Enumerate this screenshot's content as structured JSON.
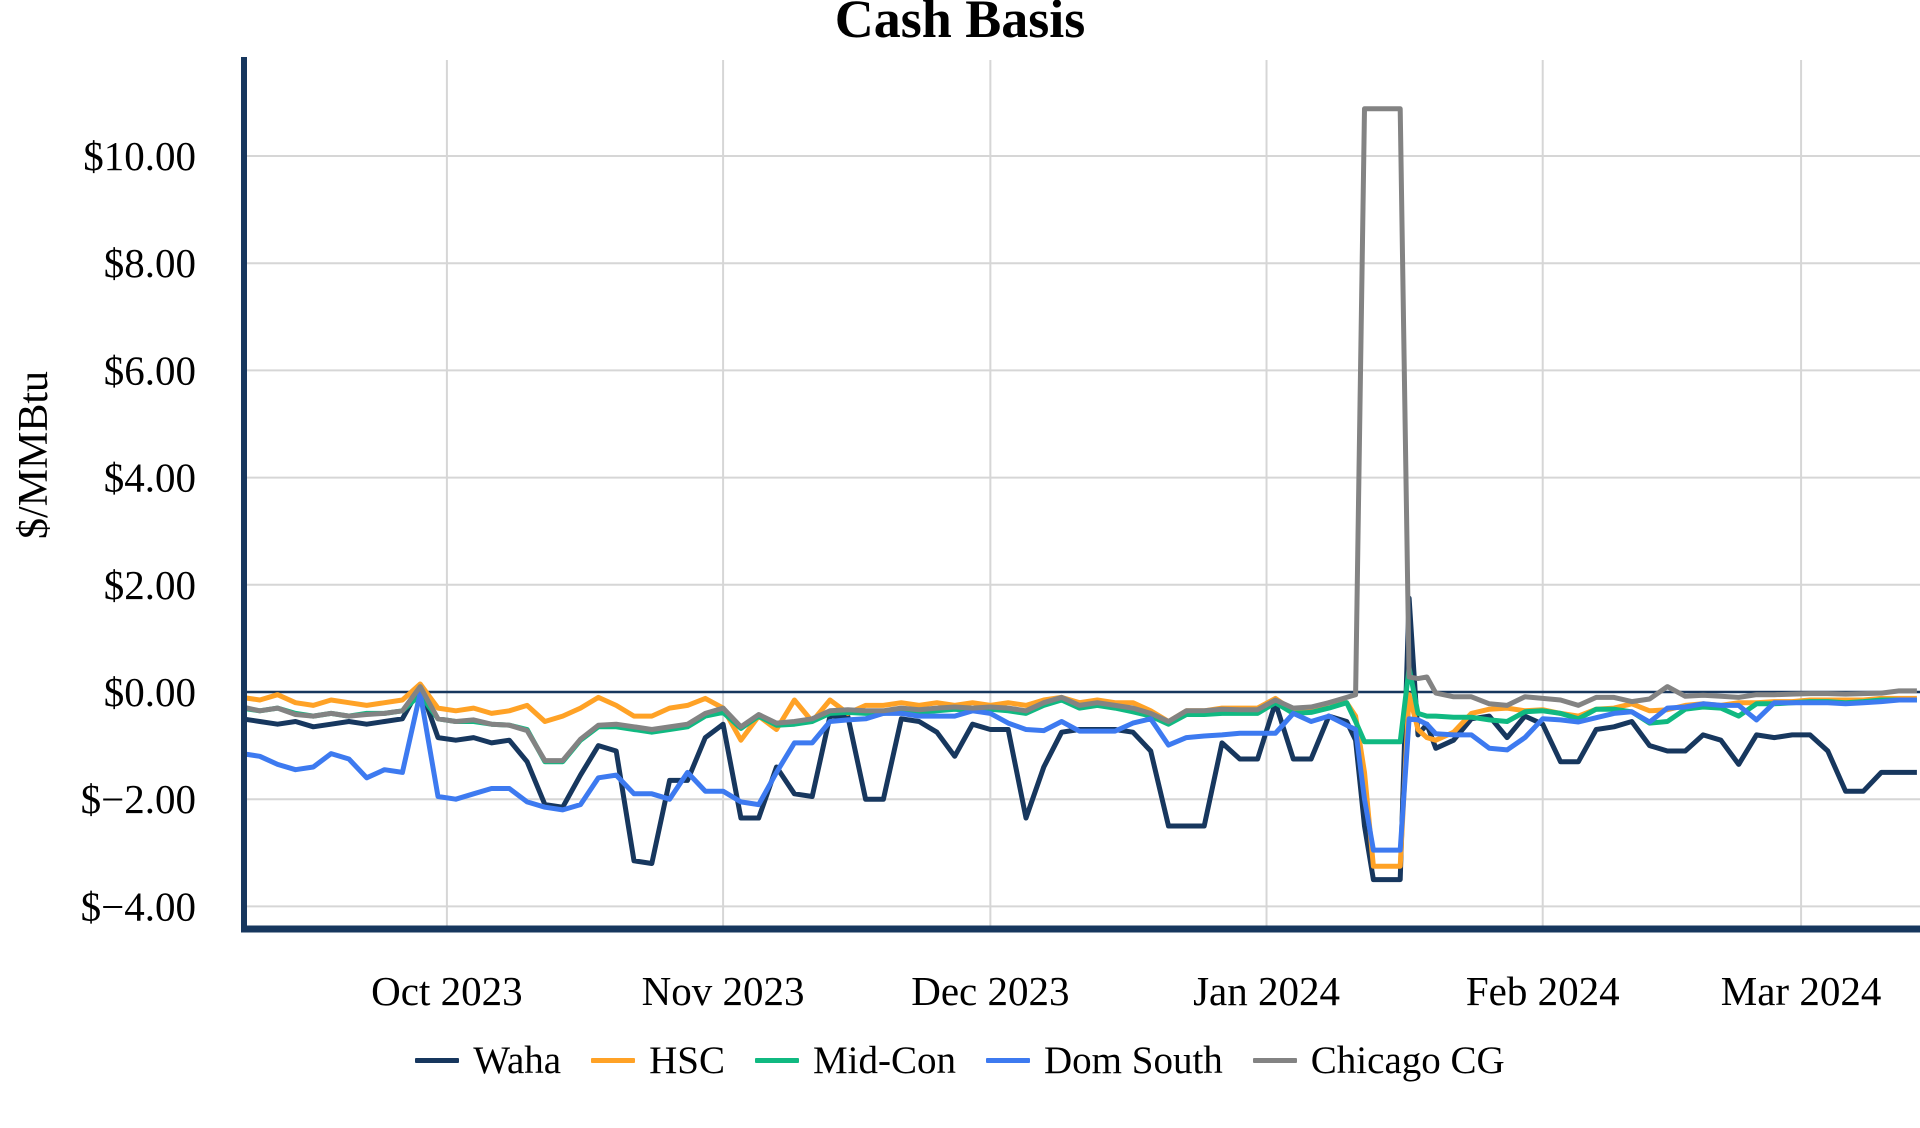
{
  "title": "Cash Basis",
  "y_axis": {
    "label": "$/MMBtu",
    "tick_values": [
      10,
      8,
      6,
      4,
      2,
      0,
      -2,
      -4
    ],
    "tick_labels": [
      "$10.00",
      "$8.00",
      "$6.00",
      "$4.00",
      "$2.00",
      "$0.00",
      "$−2.00",
      "$−4.00"
    ]
  },
  "x_axis": {
    "tick_labels": [
      "Oct 2023",
      "Nov 2023",
      "Dec 2023",
      "Jan 2024",
      "Feb 2024",
      "Mar 2024"
    ],
    "tick_days": [
      23,
      54,
      84,
      115,
      146,
      175
    ]
  },
  "colors": {
    "axis": "#17375e",
    "zero_line": "#17375e",
    "grid": "#d6d6d6",
    "background": "#ffffff"
  },
  "legend": {
    "position": "bottom",
    "entries": [
      "Waha",
      "HSC",
      "Mid-Con",
      "Dom South",
      "Chicago CG"
    ]
  },
  "chart_data": {
    "type": "line",
    "title": "Cash Basis",
    "xlabel": "",
    "ylabel": "$/MMBtu",
    "ylim": [
      -4.45,
      11.8
    ],
    "grid": true,
    "legend_position": "bottom",
    "x_unit": "days since start_date (daily cash basis series, Sep 2023 - Mar 2024)",
    "start_date": "2023-09-08",
    "end_date": "2024-03-14",
    "days": [
      0,
      2,
      4,
      6,
      8,
      10,
      12,
      14,
      16,
      18,
      20,
      22,
      24,
      26,
      28,
      30,
      32,
      34,
      36,
      38,
      40,
      42,
      44,
      46,
      48,
      50,
      52,
      54,
      56,
      58,
      60,
      62,
      64,
      66,
      68,
      70,
      72,
      74,
      76,
      78,
      80,
      82,
      84,
      86,
      88,
      90,
      92,
      94,
      96,
      98,
      100,
      102,
      104,
      106,
      108,
      110,
      112,
      114,
      116,
      118,
      120,
      122,
      124,
      125,
      126,
      127,
      128,
      129,
      130,
      131,
      132,
      133,
      134,
      136,
      138,
      140,
      142,
      144,
      146,
      148,
      150,
      152,
      154,
      156,
      158,
      160,
      162,
      164,
      166,
      168,
      170,
      172,
      174,
      176,
      178,
      180,
      182,
      184,
      186,
      188
    ],
    "series": [
      {
        "name": "Waha",
        "color": "#17375e",
        "values": [
          -0.5,
          -0.55,
          -0.6,
          -0.55,
          -0.65,
          -0.6,
          -0.55,
          -0.6,
          -0.55,
          -0.5,
          0.1,
          -0.85,
          -0.9,
          -0.85,
          -0.95,
          -0.9,
          -1.3,
          -2.1,
          -2.15,
          -1.55,
          -1.0,
          -1.1,
          -3.15,
          -3.2,
          -1.65,
          -1.65,
          -0.85,
          -0.6,
          -2.35,
          -2.35,
          -1.4,
          -1.9,
          -1.95,
          -0.45,
          -0.45,
          -2.0,
          -2.0,
          -0.5,
          -0.55,
          -0.75,
          -1.2,
          -0.6,
          -0.7,
          -0.7,
          -2.35,
          -1.4,
          -0.75,
          -0.7,
          -0.7,
          -0.7,
          -0.75,
          -1.1,
          -2.5,
          -2.5,
          -2.5,
          -0.95,
          -1.25,
          -1.25,
          -0.2,
          -1.25,
          -1.25,
          -0.45,
          -0.55,
          -0.9,
          -2.5,
          -3.5,
          -3.5,
          -3.5,
          -3.5,
          1.75,
          -0.8,
          -0.6,
          -1.05,
          -0.9,
          -0.5,
          -0.45,
          -0.85,
          -0.45,
          -0.6,
          -1.3,
          -1.3,
          -0.7,
          -0.65,
          -0.55,
          -1.0,
          -1.1,
          -1.1,
          -0.8,
          -0.9,
          -1.35,
          -0.8,
          -0.85,
          -0.8,
          -0.8,
          -1.1,
          -1.85,
          -1.85,
          -1.5,
          -1.5,
          -1.5
        ]
      },
      {
        "name": "HSC",
        "color": "#ffa226",
        "values": [
          -0.1,
          -0.15,
          -0.05,
          -0.2,
          -0.25,
          -0.15,
          -0.2,
          -0.25,
          -0.2,
          -0.15,
          0.15,
          -0.3,
          -0.35,
          -0.3,
          -0.4,
          -0.35,
          -0.25,
          -0.55,
          -0.45,
          -0.3,
          -0.1,
          -0.25,
          -0.45,
          -0.45,
          -0.3,
          -0.25,
          -0.12,
          -0.3,
          -0.9,
          -0.45,
          -0.7,
          -0.15,
          -0.55,
          -0.15,
          -0.4,
          -0.25,
          -0.25,
          -0.2,
          -0.25,
          -0.2,
          -0.25,
          -0.2,
          -0.25,
          -0.2,
          -0.25,
          -0.15,
          -0.1,
          -0.2,
          -0.15,
          -0.2,
          -0.2,
          -0.35,
          -0.55,
          -0.35,
          -0.35,
          -0.3,
          -0.3,
          -0.3,
          -0.12,
          -0.35,
          -0.35,
          -0.2,
          -0.2,
          -0.45,
          -1.5,
          -3.25,
          -3.25,
          -3.25,
          -3.25,
          -0.05,
          -0.7,
          -0.85,
          -0.9,
          -0.75,
          -0.4,
          -0.32,
          -0.3,
          -0.35,
          -0.33,
          -0.4,
          -0.45,
          -0.32,
          -0.3,
          -0.22,
          -0.35,
          -0.33,
          -0.25,
          -0.22,
          -0.25,
          -0.2,
          -0.2,
          -0.18,
          -0.18,
          -0.15,
          -0.15,
          -0.15,
          -0.15,
          -0.12,
          -0.12,
          -0.12
        ]
      },
      {
        "name": "Mid-Con",
        "color": "#10b981",
        "values": [
          -0.3,
          -0.35,
          -0.3,
          -0.4,
          -0.45,
          -0.4,
          -0.45,
          -0.4,
          -0.4,
          -0.35,
          -0.05,
          -0.5,
          -0.55,
          -0.55,
          -0.6,
          -0.62,
          -0.7,
          -1.3,
          -1.3,
          -0.9,
          -0.65,
          -0.65,
          -0.7,
          -0.75,
          -0.7,
          -0.65,
          -0.45,
          -0.38,
          -0.68,
          -0.45,
          -0.62,
          -0.6,
          -0.55,
          -0.4,
          -0.38,
          -0.4,
          -0.4,
          -0.35,
          -0.38,
          -0.35,
          -0.32,
          -0.35,
          -0.32,
          -0.35,
          -0.4,
          -0.25,
          -0.15,
          -0.3,
          -0.25,
          -0.3,
          -0.37,
          -0.45,
          -0.6,
          -0.42,
          -0.42,
          -0.4,
          -0.4,
          -0.4,
          -0.2,
          -0.4,
          -0.38,
          -0.3,
          -0.2,
          -0.55,
          -0.93,
          -0.93,
          -0.93,
          -0.93,
          -0.93,
          0.45,
          -0.4,
          -0.45,
          -0.45,
          -0.47,
          -0.47,
          -0.52,
          -0.55,
          -0.37,
          -0.35,
          -0.4,
          -0.5,
          -0.32,
          -0.32,
          -0.37,
          -0.58,
          -0.55,
          -0.32,
          -0.28,
          -0.3,
          -0.45,
          -0.22,
          -0.22,
          -0.2,
          -0.18,
          -0.18,
          -0.2,
          -0.18,
          -0.15,
          -0.15,
          -0.15
        ]
      },
      {
        "name": "Dom South",
        "color": "#3d7af0",
        "values": [
          -1.15,
          -1.2,
          -1.35,
          -1.45,
          -1.4,
          -1.15,
          -1.25,
          -1.6,
          -1.45,
          -1.5,
          -0.02,
          -1.95,
          -2.0,
          -1.9,
          -1.8,
          -1.8,
          -2.05,
          -2.15,
          -2.2,
          -2.1,
          -1.6,
          -1.55,
          -1.9,
          -1.9,
          -2.0,
          -1.5,
          -1.85,
          -1.85,
          -2.05,
          -2.1,
          -1.5,
          -0.95,
          -0.95,
          -0.55,
          -0.52,
          -0.5,
          -0.4,
          -0.4,
          -0.45,
          -0.45,
          -0.45,
          -0.35,
          -0.4,
          -0.58,
          -0.7,
          -0.72,
          -0.55,
          -0.73,
          -0.73,
          -0.73,
          -0.58,
          -0.5,
          -0.99,
          -0.85,
          -0.82,
          -0.8,
          -0.77,
          -0.77,
          -0.77,
          -0.4,
          -0.55,
          -0.45,
          -0.62,
          -0.7,
          -2.0,
          -2.95,
          -2.95,
          -2.95,
          -2.95,
          -0.5,
          -0.52,
          -0.6,
          -0.78,
          -0.8,
          -0.8,
          -1.05,
          -1.08,
          -0.85,
          -0.5,
          -0.52,
          -0.56,
          -0.48,
          -0.4,
          -0.37,
          -0.56,
          -0.3,
          -0.28,
          -0.22,
          -0.25,
          -0.25,
          -0.52,
          -0.2,
          -0.2,
          -0.2,
          -0.2,
          -0.22,
          -0.2,
          -0.18,
          -0.15,
          -0.15
        ]
      },
      {
        "name": "Chicago CG",
        "color": "#838383",
        "values": [
          -0.28,
          -0.35,
          -0.3,
          -0.42,
          -0.45,
          -0.4,
          -0.45,
          -0.42,
          -0.4,
          -0.35,
          0.1,
          -0.5,
          -0.55,
          -0.52,
          -0.6,
          -0.62,
          -0.72,
          -1.28,
          -1.28,
          -0.88,
          -0.62,
          -0.6,
          -0.65,
          -0.7,
          -0.65,
          -0.6,
          -0.4,
          -0.3,
          -0.65,
          -0.42,
          -0.58,
          -0.55,
          -0.5,
          -0.35,
          -0.33,
          -0.35,
          -0.35,
          -0.3,
          -0.33,
          -0.3,
          -0.28,
          -0.3,
          -0.28,
          -0.3,
          -0.35,
          -0.2,
          -0.1,
          -0.25,
          -0.2,
          -0.25,
          -0.3,
          -0.4,
          -0.55,
          -0.35,
          -0.35,
          -0.32,
          -0.33,
          -0.33,
          -0.15,
          -0.3,
          -0.28,
          -0.2,
          -0.1,
          -0.05,
          10.88,
          10.88,
          10.88,
          10.88,
          10.88,
          0.28,
          0.25,
          0.28,
          -0.02,
          -0.09,
          -0.09,
          -0.22,
          -0.25,
          -0.09,
          -0.12,
          -0.15,
          -0.25,
          -0.1,
          -0.1,
          -0.18,
          -0.13,
          0.1,
          -0.08,
          -0.06,
          -0.08,
          -0.1,
          -0.05,
          -0.05,
          -0.04,
          -0.03,
          -0.03,
          -0.04,
          -0.03,
          -0.02,
          0.02,
          0.02
        ]
      }
    ]
  }
}
